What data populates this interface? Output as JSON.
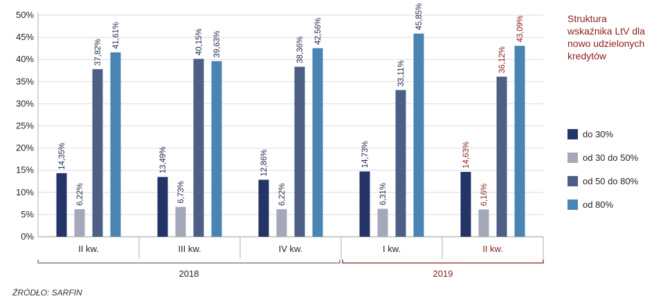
{
  "chart_data": {
    "type": "bar",
    "title": "Struktura wskaźnika LtV dla nowo udzielonych kredytów",
    "categories": [
      "II kw.",
      "III kw.",
      "IV kw.",
      "I kw.",
      "II kw."
    ],
    "years": [
      {
        "label": "2018",
        "categories": [
          "II kw.",
          "III kw.",
          "IV kw."
        ],
        "highlight": false
      },
      {
        "label": "2019",
        "categories": [
          "I kw.",
          "II kw."
        ],
        "highlight": true
      }
    ],
    "highlight_category_index": 4,
    "yticks": [
      "0%",
      "5%",
      "10%",
      "15%",
      "20%",
      "25%",
      "30%",
      "35%",
      "40%",
      "45%",
      "50%"
    ],
    "ylim": [
      0,
      50
    ],
    "series": [
      {
        "name": "do 30%",
        "color": "#243466",
        "values": [
          14.35,
          13.49,
          12.86,
          14.73,
          14.63
        ],
        "labels": [
          "14,35%",
          "13,49%",
          "12,86%",
          "14,73%",
          "14,63%"
        ]
      },
      {
        "name": "od 30 do 50%",
        "color": "#a4a8b8",
        "values": [
          6.22,
          6.73,
          6.22,
          6.31,
          6.16
        ],
        "labels": [
          "6,22%",
          "6,73%",
          "6,22%",
          "6,31%",
          "6,16%"
        ]
      },
      {
        "name": "od 50 do 80%",
        "color": "#4e5f85",
        "values": [
          37.82,
          40.15,
          38.36,
          33.11,
          36.12
        ],
        "labels": [
          "37,82%",
          "40,15%",
          "38,36%",
          "33,11%",
          "36,12%"
        ]
      },
      {
        "name": "od 80%",
        "color": "#4a84b3",
        "values": [
          41.61,
          39.63,
          42.56,
          45.85,
          43.09
        ],
        "labels": [
          "41,61%",
          "39,63%",
          "42,56%",
          "45,85%",
          "43,09%"
        ]
      }
    ],
    "grid": true,
    "legend": "right"
  },
  "colors": {
    "highlight": "#8b1c1c",
    "axis": "#a8acb8",
    "year_bracket_2018": "#6a6a6a",
    "year_bracket_2019": "#8b1c1c"
  },
  "source": "ŹRÓDŁO: SARFIN"
}
